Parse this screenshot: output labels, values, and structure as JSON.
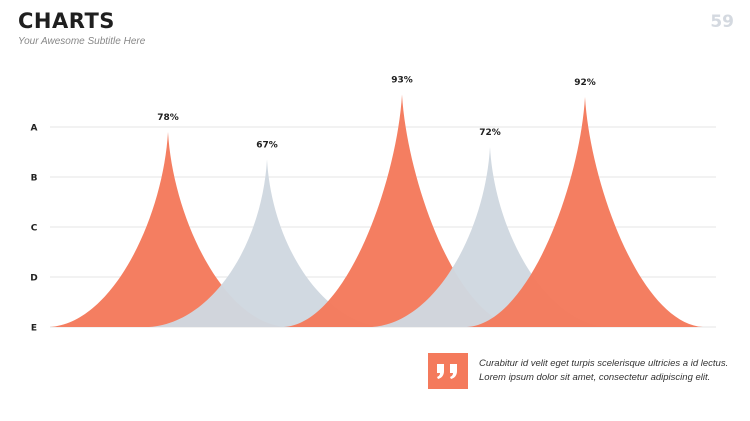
{
  "header": {
    "title": "CHARTS",
    "subtitle": "Your Awesome Subtitle Here",
    "page_number": "59"
  },
  "colors": {
    "accent": "#f47a5c",
    "secondary": "#d0d8e0",
    "gridline": "#e6e6e6"
  },
  "chart_data": {
    "type": "area",
    "y_categories": [
      "A",
      "B",
      "C",
      "D",
      "E"
    ],
    "ylim": [
      0,
      100
    ],
    "grid": true,
    "series": [
      {
        "value": 78,
        "label": "78%",
        "color": "#f47a5c"
      },
      {
        "value": 67,
        "label": "67%",
        "color": "#d0d8e0"
      },
      {
        "value": 93,
        "label": "93%",
        "color": "#f47a5c"
      },
      {
        "value": 72,
        "label": "72%",
        "color": "#d0d8e0"
      },
      {
        "value": 92,
        "label": "92%",
        "color": "#f47a5c"
      }
    ]
  },
  "quote": {
    "icon": "quote-icon",
    "line1": "Curabitur id velit eget turpis scelerisque ultricies a id lectus.",
    "line2": "Lorem ipsum dolor sit amet, consectetur adipiscing elit."
  }
}
